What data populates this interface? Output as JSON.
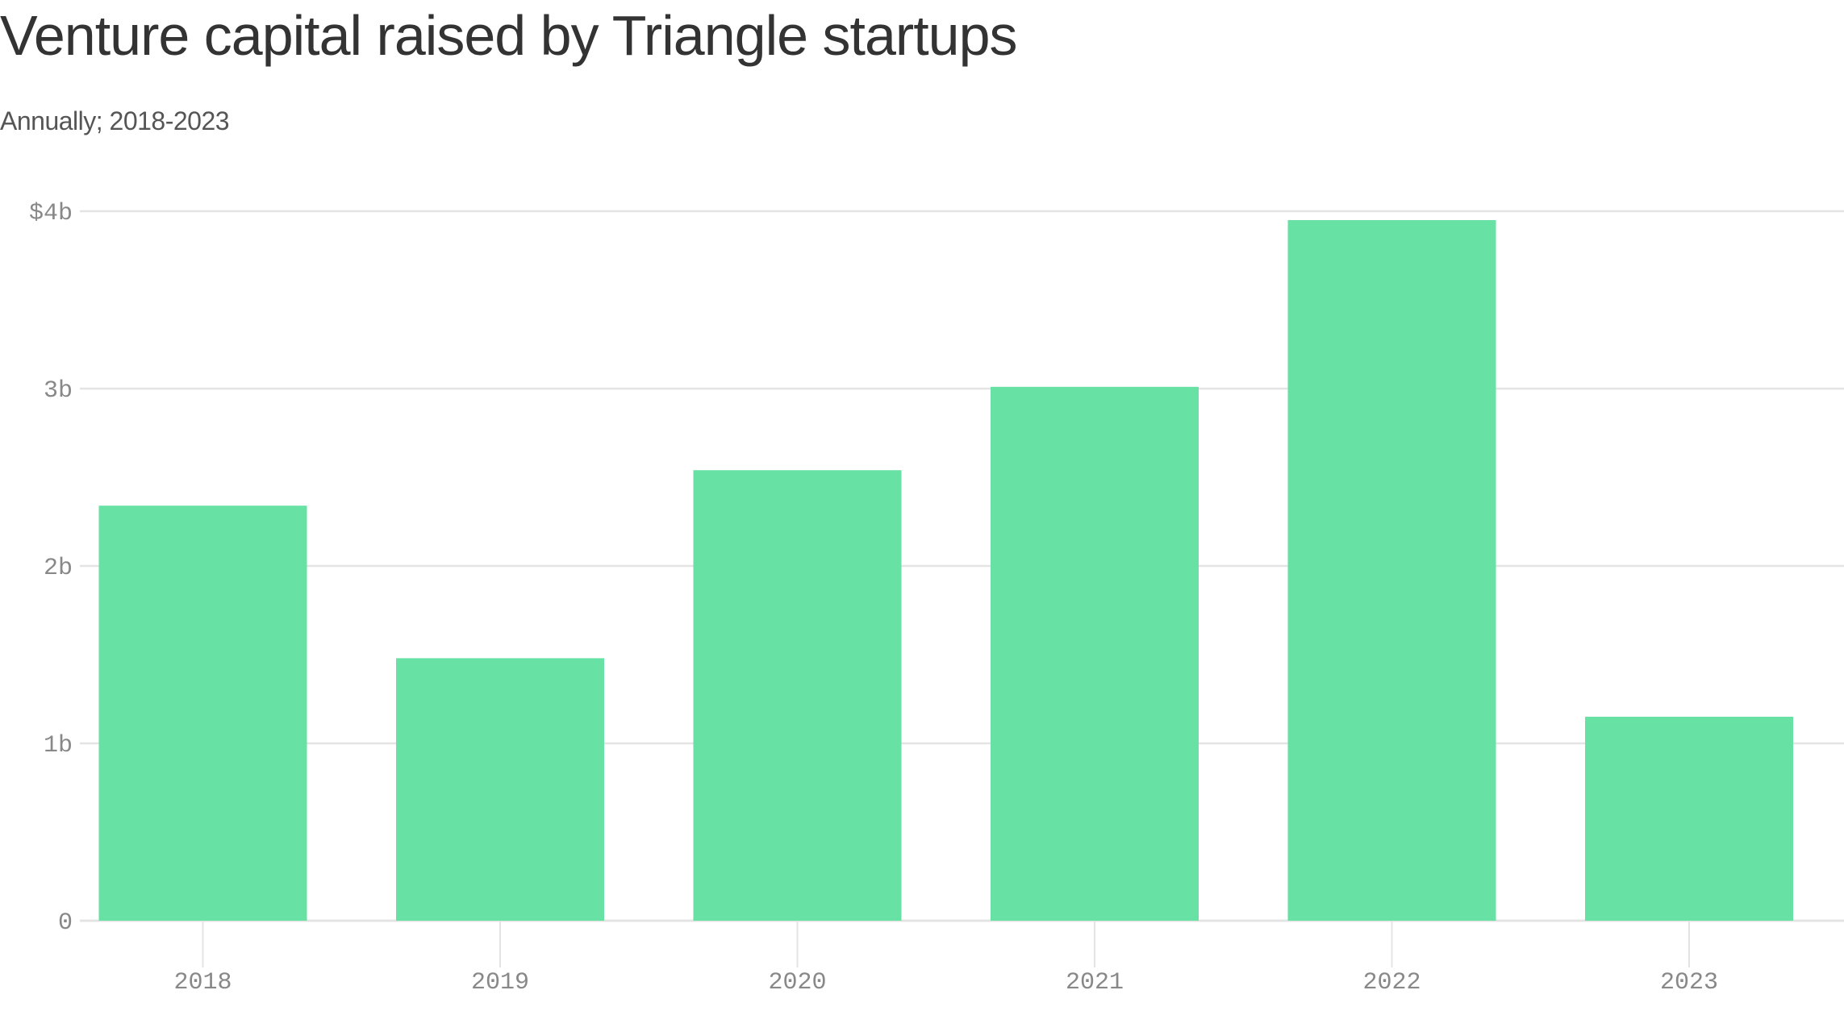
{
  "chart_data": {
    "type": "bar",
    "title": "Venture capital raised by Triangle startups",
    "subtitle": "Annually; 2018-2023",
    "xlabel": "",
    "ylabel": "",
    "categories": [
      "2018",
      "2019",
      "2020",
      "2021",
      "2022",
      "2023"
    ],
    "values": [
      2.34,
      1.48,
      2.54,
      3.01,
      3.95,
      1.15
    ],
    "unit": "billion USD",
    "ylim": [
      0,
      4
    ],
    "yticks": [
      0,
      1,
      2,
      3,
      4
    ],
    "ytick_labels": [
      "0",
      "1b",
      "2b",
      "3b",
      "$4b"
    ],
    "grid": true,
    "legend": "none",
    "bar_color": "#67e2a4",
    "grid_color": "#e4e4e4"
  }
}
